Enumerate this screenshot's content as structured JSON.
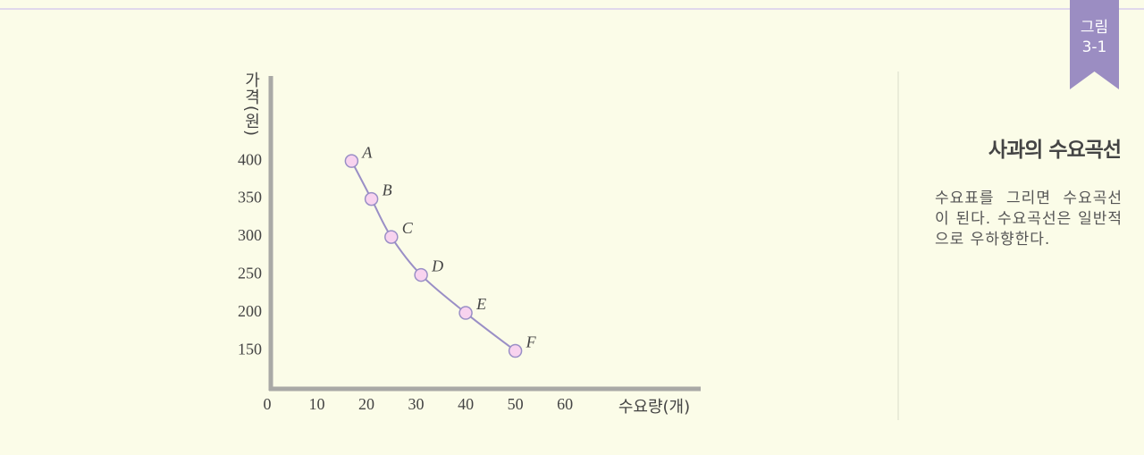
{
  "figure_tag": [
    "그림",
    "3-1"
  ],
  "side_title": "사과의 수요곡선",
  "side_text": "수요표를 그리면 수요곡선이 된다. 수요곡선은 일반적으로 우하향한다.",
  "chart_data": {
    "type": "line",
    "x_label": "수요량(개)",
    "y_label": "가격(원)",
    "x": [
      17,
      21,
      25,
      31,
      40,
      50
    ],
    "values": [
      400,
      350,
      300,
      250,
      200,
      150
    ],
    "point_labels": [
      "A",
      "B",
      "C",
      "D",
      "E",
      "F"
    ],
    "color": "#9a8fc6",
    "marker_color": "#f8d3ef",
    "xlim": [
      0,
      87
    ],
    "ylim": [
      100,
      512
    ],
    "xticks": [
      0,
      10,
      20,
      30,
      40,
      50,
      60
    ],
    "yticks": [
      150,
      200,
      250,
      300,
      350,
      400
    ]
  }
}
